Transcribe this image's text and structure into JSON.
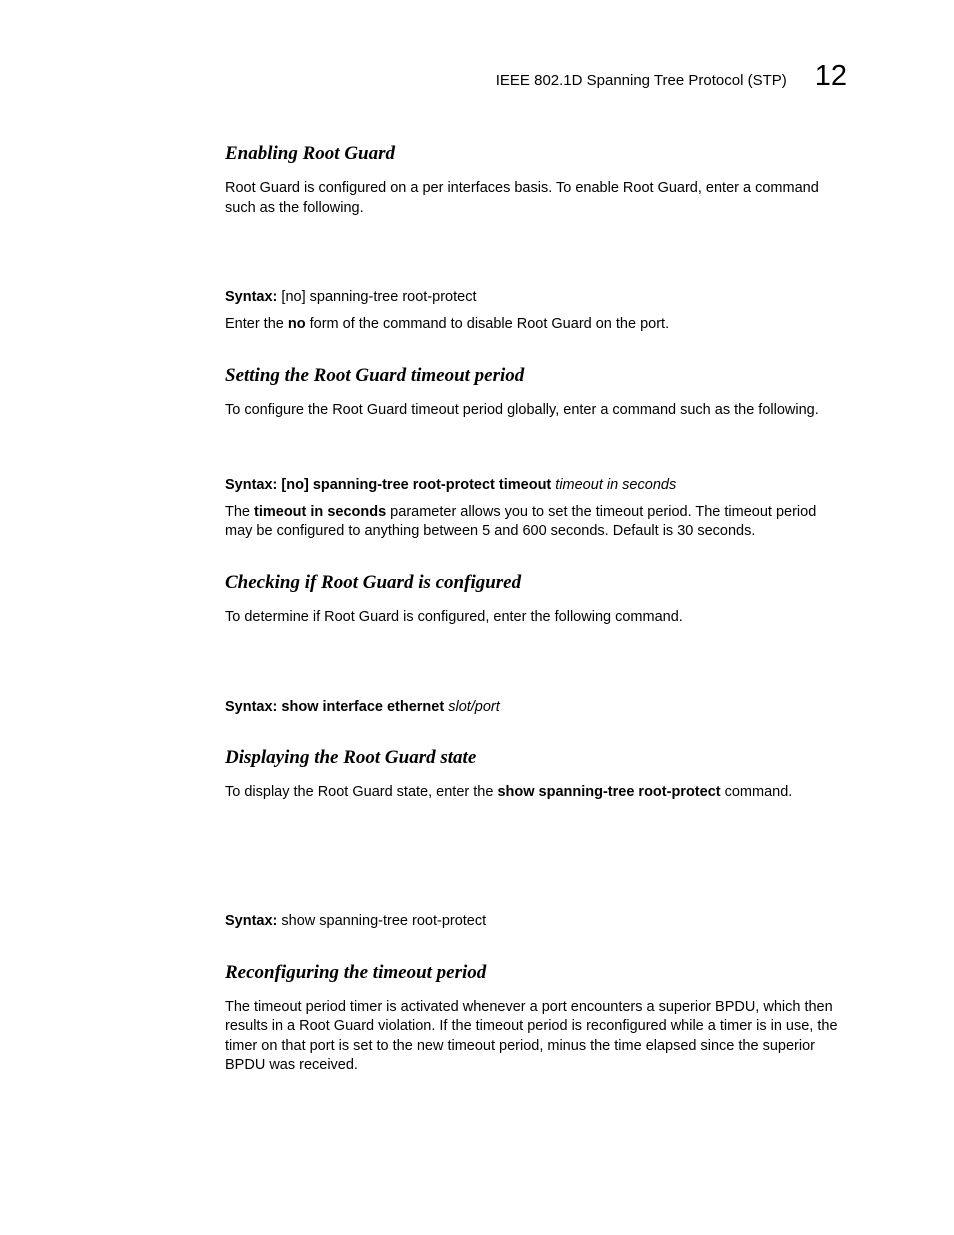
{
  "header": {
    "title": "IEEE 802.1D Spanning Tree Protocol (STP)",
    "chapter": "12"
  },
  "sections": [
    {
      "heading": "Enabling Root Guard",
      "intro": "Root Guard is configured on a per interfaces basis. To enable Root Guard, enter a command such as the following.",
      "syntax_label": "Syntax:",
      "syntax_text": "[no] spanning-tree root-protect",
      "syntax_bold": false,
      "after_pre": "Enter the ",
      "after_bold": "no",
      "after_post": " form of the command to disable Root Guard on the port.",
      "gap": "lg"
    },
    {
      "heading": "Setting the Root Guard timeout period",
      "intro": "To configure the Root Guard timeout period globally, enter a command such as the following.",
      "syntax_label": "Syntax:",
      "syntax_bold_part": "[no] spanning-tree root-protect timeout",
      "syntax_italic_part": " timeout in seconds",
      "after_pre": "The ",
      "after_bold": "timeout in seconds",
      "after_post": " parameter allows you to set the timeout period. The timeout period may be configured to anything between 5 and 600 seconds. Default is 30 seconds.",
      "gap": "md"
    },
    {
      "heading": "Checking if Root Guard is configured",
      "intro": "To determine if Root Guard is configured, enter the following command.",
      "syntax_label": "Syntax:",
      "syntax_bold_part": "show interface ethernet",
      "syntax_italic_part": " slot/port",
      "gap": "lg"
    },
    {
      "heading": "Displaying the Root Guard state",
      "intro_pre": "To display the Root Guard state, enter the ",
      "intro_bold": "show spanning-tree root-protect",
      "intro_post": " command.",
      "syntax_label": "Syntax:",
      "syntax_text": "show spanning-tree root-protect",
      "syntax_bold": false,
      "gap": "xl"
    },
    {
      "heading": "Reconfiguring the timeout period",
      "intro": "The timeout period timer is activated whenever a port encounters a superior BPDU, which then results in a Root Guard violation. If the timeout period is reconfigured while a timer is in use, the timer on that port is set to the new timeout period, minus the time elapsed since the superior BPDU was received."
    }
  ]
}
